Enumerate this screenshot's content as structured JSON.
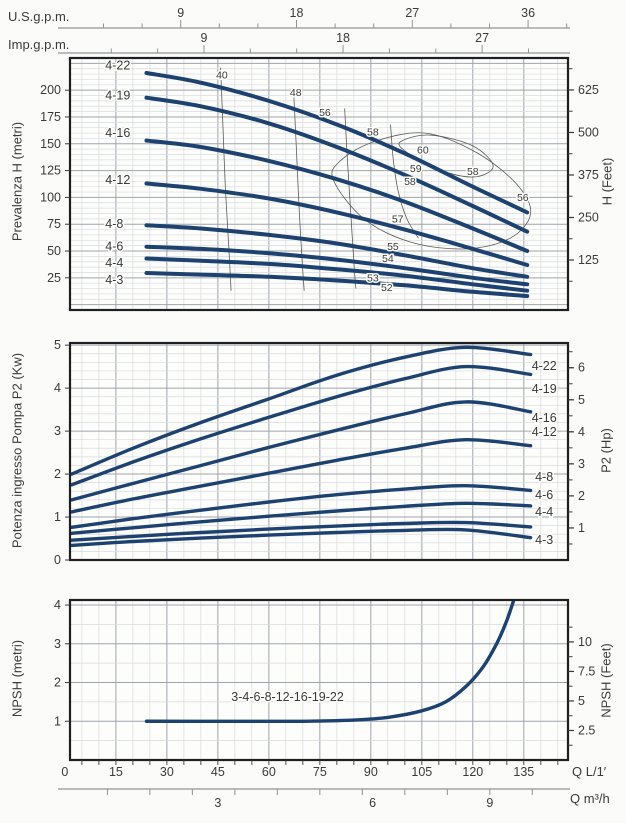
{
  "figure": {
    "bg_outside": "#fbfbfa",
    "bg_plot": "#fdfdfc",
    "curve_color": "#1d4270",
    "eff_line_color": "#5a5a5a",
    "grid_minor_color": "#d8dbdf",
    "grid_major_color": "#9ea4ad",
    "border_color": "#1f1f1f",
    "ruler_color": "#8f9398",
    "text_color": "#3a3a3a",
    "q_range": [
      1.5,
      148
    ],
    "x_major_step": 15,
    "x_minor_step": 5
  },
  "top_axes": {
    "us": {
      "label": "U.S.g.p.m.",
      "ticks": [
        9,
        18,
        27,
        36
      ],
      "lpm_per_unit": 3.785,
      "minor_step_units": 3,
      "minor_max_units": 39
    },
    "imp": {
      "label": "Imp.g.p.m.",
      "ticks": [
        9,
        18,
        27
      ],
      "lpm_per_unit": 4.546,
      "minor_step_units": 3,
      "minor_max_units": 30
    }
  },
  "bottom_axes": {
    "lpm": {
      "label": "Q L/1′",
      "ticks": [
        0,
        15,
        30,
        45,
        60,
        75,
        90,
        105,
        120,
        135
      ],
      "tick_minor_step": 5
    },
    "m3h": {
      "label": "Q m³/h",
      "ticks": [
        {
          "label": "3",
          "q": 45
        },
        {
          "label": "6",
          "q": 90.5
        },
        {
          "label": "9",
          "q": 125
        }
      ],
      "minor_step_q": 12.5,
      "minor_start_q": 12.5
    }
  },
  "chart_data": [
    {
      "type": "line",
      "id": "head",
      "ylabel": "Prevalenza H (metri)",
      "ylabel_right": "H (Feet)",
      "y_range": [
        -5,
        230
      ],
      "y_ticks": [
        25,
        50,
        75,
        100,
        125,
        150,
        175,
        200
      ],
      "y_minor_step": 5,
      "y_major_step": 25,
      "right_mode": "range",
      "right_range": [
        -22,
        719
      ],
      "right_ticks": [
        125,
        250,
        375,
        500,
        625
      ],
      "right_minor_step": 62.5,
      "series": [
        {
          "name": "4-22",
          "x": [
            24,
            40,
            60,
            80,
            100,
            120,
            136
          ],
          "y": [
            216,
            207,
            190,
            168,
            141,
            110,
            86
          ],
          "label_q": 16,
          "label_v": 223
        },
        {
          "name": "4-19",
          "x": [
            24,
            40,
            60,
            80,
            100,
            120,
            136
          ],
          "y": [
            193,
            185,
            169,
            147,
            121,
            92,
            68
          ],
          "label_q": 16,
          "label_v": 195
        },
        {
          "name": "4-16",
          "x": [
            24,
            40,
            60,
            80,
            100,
            120,
            136
          ],
          "y": [
            153,
            147,
            134,
            117,
            96,
            71,
            50
          ],
          "label_q": 16,
          "label_v": 160
        },
        {
          "name": "4-12",
          "x": [
            24,
            40,
            60,
            80,
            100,
            120,
            136
          ],
          "y": [
            113,
            108,
            99,
            86,
            70,
            52,
            37
          ],
          "label_q": 16,
          "label_v": 116
        },
        {
          "name": "4-8",
          "x": [
            24,
            40,
            60,
            80,
            100,
            120,
            136
          ],
          "y": [
            74,
            71,
            65,
            57,
            46,
            34,
            26
          ],
          "label_q": 16,
          "label_v": 75
        },
        {
          "name": "4-6",
          "x": [
            24,
            40,
            60,
            80,
            100,
            120,
            136
          ],
          "y": [
            54,
            52,
            48,
            42,
            34,
            25,
            19
          ],
          "label_q": 16,
          "label_v": 54
        },
        {
          "name": "4-4",
          "x": [
            24,
            40,
            60,
            80,
            100,
            120,
            136
          ],
          "y": [
            43,
            41,
            38,
            33,
            27,
            19,
            13
          ],
          "label_q": 16,
          "label_v": 39
        },
        {
          "name": "4-3",
          "x": [
            24,
            40,
            60,
            80,
            100,
            120,
            136
          ],
          "y": [
            29.5,
            28,
            26,
            22.5,
            18,
            12,
            8
          ],
          "label_q": 16,
          "label_v": 23
        }
      ],
      "efficiency_lines": [
        {
          "closed": false,
          "pts": [
            [
              45.8,
              221
            ],
            [
              46.5,
              165
            ],
            [
              47.2,
              110
            ],
            [
              48.2,
              55
            ],
            [
              48.9,
              13
            ]
          ]
        },
        {
          "closed": false,
          "pts": [
            [
              67.3,
              198
            ],
            [
              68.1,
              145
            ],
            [
              68.9,
              90
            ],
            [
              69.9,
              35
            ],
            [
              70.4,
              13
            ]
          ]
        },
        {
          "closed": false,
          "pts": [
            [
              82.3,
              183
            ],
            [
              83.1,
              135
            ],
            [
              84.1,
              85
            ],
            [
              85.1,
              35
            ],
            [
              85.6,
              15
            ]
          ]
        },
        {
          "closed": false,
          "pts": [
            [
              95.8,
              168
            ],
            [
              96.6,
              135
            ],
            [
              98.1,
              105
            ],
            [
              100.6,
              80
            ],
            [
              104,
              62
            ]
          ]
        },
        {
          "closed": true,
          "pts": [
            [
              79,
              116
            ],
            [
              88,
              80
            ],
            [
              102,
              58
            ],
            [
              118,
              52
            ],
            [
              131,
              62
            ],
            [
              137,
              85
            ],
            [
              133,
              112
            ],
            [
              121,
              142
            ],
            [
              106,
              160
            ],
            [
              91,
              152
            ],
            [
              81,
              134
            ]
          ]
        },
        {
          "closed": true,
          "pts": [
            [
              99,
              146
            ],
            [
              109,
              127
            ],
            [
              120,
              119
            ],
            [
              126,
              129
            ],
            [
              120,
              148
            ],
            [
              108,
              158
            ],
            [
              100,
              154
            ]
          ]
        }
      ],
      "efficiency_labels": [
        {
          "text": "40",
          "q": 46.2,
          "v": 214
        },
        {
          "text": "48",
          "q": 67.9,
          "v": 198
        },
        {
          "text": "56",
          "q": 76.5,
          "v": 179
        },
        {
          "text": "58",
          "q": 90.6,
          "v": 161
        },
        {
          "text": "60",
          "q": 105.3,
          "v": 144
        },
        {
          "text": "59",
          "q": 103.2,
          "v": 127
        },
        {
          "text": "58",
          "q": 101.5,
          "v": 115
        },
        {
          "text": "58",
          "q": 120.0,
          "v": 124
        },
        {
          "text": "56",
          "q": 134.7,
          "v": 100
        },
        {
          "text": "57",
          "q": 97.9,
          "v": 80
        },
        {
          "text": "55",
          "q": 96.5,
          "v": 54
        },
        {
          "text": "54",
          "q": 95.0,
          "v": 43
        },
        {
          "text": "53",
          "q": 90.6,
          "v": 25
        },
        {
          "text": "52",
          "q": 94.7,
          "v": 16
        }
      ]
    },
    {
      "type": "line",
      "id": "power",
      "ylabel": "Potenza ingresso Pompa P2 (Kw)",
      "ylabel_right": "P2 (Hp)",
      "y_range": [
        0,
        5.05
      ],
      "y_ticks": [
        0,
        1,
        2,
        3,
        4,
        5
      ],
      "y_minor_step": 0.2,
      "y_major_step": 1,
      "right_mode": "factor",
      "right_factor": 0.7457,
      "right_ticks": [
        1,
        2,
        3,
        4,
        5,
        6
      ],
      "right_minor_step": 0.5,
      "series": [
        {
          "name": "4-22",
          "x": [
            2,
            20,
            40,
            60,
            80,
            100,
            118,
            137
          ],
          "y": [
            2.0,
            2.6,
            3.2,
            3.75,
            4.3,
            4.72,
            4.95,
            4.78
          ],
          "label_q": 141,
          "label_v": 4.51
        },
        {
          "name": "4-19",
          "x": [
            2,
            20,
            40,
            60,
            80,
            100,
            118,
            137
          ],
          "y": [
            1.75,
            2.28,
            2.82,
            3.32,
            3.8,
            4.22,
            4.5,
            4.32
          ],
          "label_q": 141,
          "label_v": 3.98
        },
        {
          "name": "4-16",
          "x": [
            2,
            20,
            40,
            60,
            80,
            100,
            118,
            137
          ],
          "y": [
            1.4,
            1.78,
            2.2,
            2.62,
            3.02,
            3.4,
            3.68,
            3.45
          ],
          "label_q": 141,
          "label_v": 3.3
        },
        {
          "name": "4-12",
          "x": [
            2,
            20,
            40,
            60,
            80,
            100,
            118,
            137
          ],
          "y": [
            1.12,
            1.42,
            1.72,
            2.02,
            2.32,
            2.6,
            2.8,
            2.66
          ],
          "label_q": 141,
          "label_v": 2.98
        },
        {
          "name": "4-8",
          "x": [
            2,
            20,
            40,
            60,
            80,
            100,
            118,
            137
          ],
          "y": [
            0.76,
            0.96,
            1.16,
            1.35,
            1.52,
            1.65,
            1.73,
            1.62
          ],
          "label_q": 141,
          "label_v": 1.93
        },
        {
          "name": "4-6",
          "x": [
            2,
            20,
            40,
            60,
            80,
            100,
            118,
            137
          ],
          "y": [
            0.62,
            0.75,
            0.89,
            1.02,
            1.14,
            1.25,
            1.32,
            1.26
          ],
          "label_q": 141,
          "label_v": 1.51
        },
        {
          "name": "4-4",
          "x": [
            2,
            20,
            40,
            60,
            80,
            100,
            118,
            137
          ],
          "y": [
            0.46,
            0.55,
            0.64,
            0.72,
            0.79,
            0.85,
            0.87,
            0.77
          ],
          "label_q": 141,
          "label_v": 1.12
        },
        {
          "name": "4-3",
          "x": [
            2,
            20,
            40,
            60,
            80,
            100,
            118,
            137
          ],
          "y": [
            0.34,
            0.43,
            0.51,
            0.58,
            0.64,
            0.69,
            0.7,
            0.52
          ],
          "label_q": 141,
          "label_v": 0.47
        }
      ],
      "efficiency_lines": [],
      "efficiency_labels": []
    },
    {
      "type": "line",
      "id": "npsh",
      "ylabel": "NPSH (metri)",
      "ylabel_right": "NPSH (Feet)",
      "y_range": [
        0,
        4.13
      ],
      "y_ticks": [
        1,
        2,
        3,
        4
      ],
      "y_minor_step": 0.5,
      "y_major_step": 1,
      "right_mode": "factor",
      "right_factor": 0.3048,
      "right_ticks": [
        2.5,
        5,
        7.5,
        10
      ],
      "right_minor_step": 1.25,
      "bottom_exterior_ticks": true,
      "series": [
        {
          "name": "3-4-6-8-12-16-19-22",
          "x": [
            24,
            50,
            70,
            85,
            95,
            105,
            112,
            118,
            123,
            127,
            130,
            132.5
          ],
          "y": [
            1.0,
            1.0,
            1.0,
            1.03,
            1.1,
            1.27,
            1.5,
            1.9,
            2.4,
            3.0,
            3.6,
            4.25
          ],
          "label_q": 65.5,
          "label_v": 1.63,
          "label_anchor": "middle"
        }
      ],
      "efficiency_lines": [],
      "efficiency_labels": []
    }
  ]
}
